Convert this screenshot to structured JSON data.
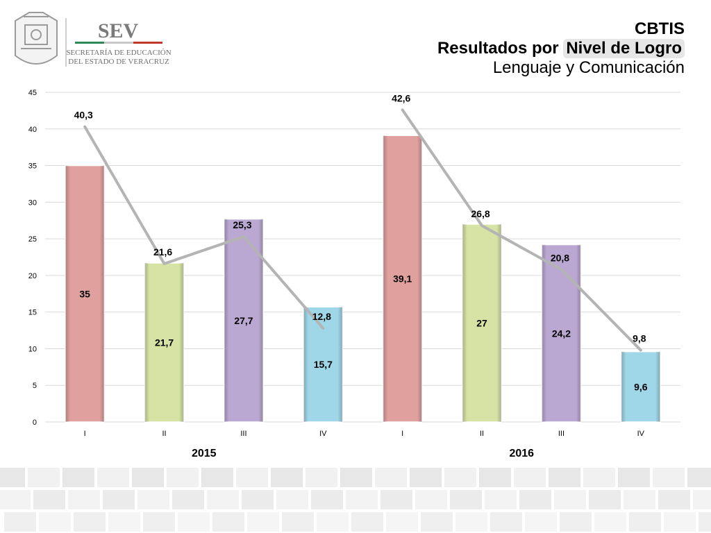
{
  "header": {
    "logo_title": "SEV",
    "logo_line1": "SECRETARÍA DE EDUCACIÓN",
    "logo_line2": "DEL ESTADO DE VERACRUZ",
    "title": "CBTIS",
    "subtitle_prefix": "Resultados por ",
    "subtitle_highlight": "Nivel de Logro",
    "subtitle2": "Lenguaje y Comunicación"
  },
  "colors": {
    "level_I": "#e0a09e",
    "level_II": "#d6e3a4",
    "level_III": "#baa7d2",
    "level_IV": "#9fd6e8",
    "line": "#b4b4b4",
    "grid": "#d9d9d9"
  },
  "chart_data": {
    "type": "bar",
    "categories": [
      "I",
      "II",
      "III",
      "IV",
      "I",
      "II",
      "III",
      "IV"
    ],
    "groups": [
      {
        "label": "2015",
        "span": [
          0,
          3
        ]
      },
      {
        "label": "2016",
        "span": [
          4,
          7
        ]
      }
    ],
    "series": [
      {
        "type": "bar",
        "values": [
          35,
          21.7,
          27.7,
          15.7,
          39.1,
          27,
          24.2,
          9.6
        ],
        "labels": [
          "35",
          "21,7",
          "27,7",
          "15,7",
          "39,1",
          "27",
          "24,2",
          "9,6"
        ]
      },
      {
        "type": "line",
        "values": [
          40.3,
          21.6,
          25.3,
          12.8,
          42.6,
          26.8,
          20.8,
          9.8
        ],
        "labels": [
          "40,3",
          "21,6",
          "25,3",
          "12,8",
          "42,6",
          "26,8",
          "20,8",
          "9,8"
        ]
      }
    ],
    "ylim": [
      0,
      45
    ],
    "yticks": [
      0,
      5,
      10,
      15,
      20,
      25,
      30,
      35,
      40,
      45
    ],
    "grid": true,
    "legend": "none"
  }
}
